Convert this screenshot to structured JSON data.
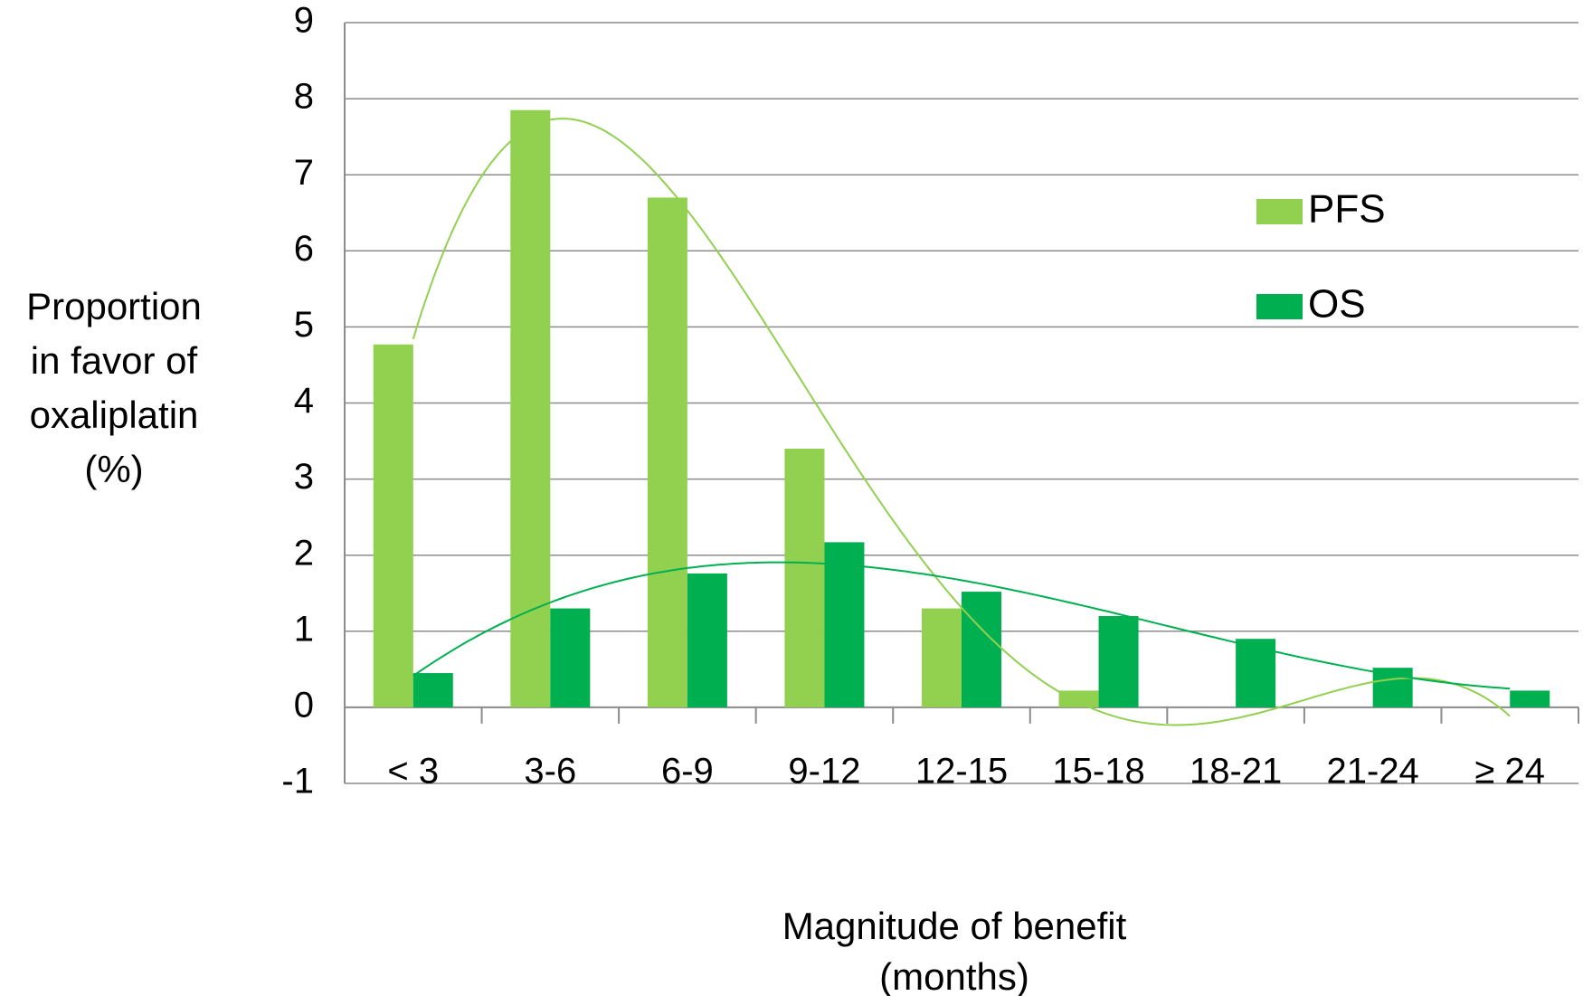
{
  "chart_data": {
    "type": "bar",
    "y_label": [
      "Proportion",
      "in favor of",
      "oxaliplatin",
      "(%)"
    ],
    "x_label": [
      "Magnitude of benefit",
      "(months)"
    ],
    "categories": [
      "< 3",
      "3-6",
      "6-9",
      "9-12",
      "12-15",
      "15-18",
      "18-21",
      "21-24",
      "≥ 24"
    ],
    "series": [
      {
        "name": "PFS",
        "color": "#92d050",
        "values": [
          4.77,
          7.85,
          6.7,
          3.4,
          1.3,
          0.22,
          0,
          0,
          0
        ],
        "trendline_order": 4
      },
      {
        "name": "OS",
        "color": "#00b050",
        "values": [
          0.45,
          1.3,
          1.76,
          2.17,
          1.52,
          1.2,
          0.9,
          0.52,
          0.22
        ],
        "trendline_order": 4
      }
    ],
    "ylim": [
      -1,
      9
    ],
    "yticks": [
      -1,
      0,
      1,
      2,
      3,
      4,
      5,
      6,
      7,
      8,
      9
    ],
    "grid": true
  }
}
